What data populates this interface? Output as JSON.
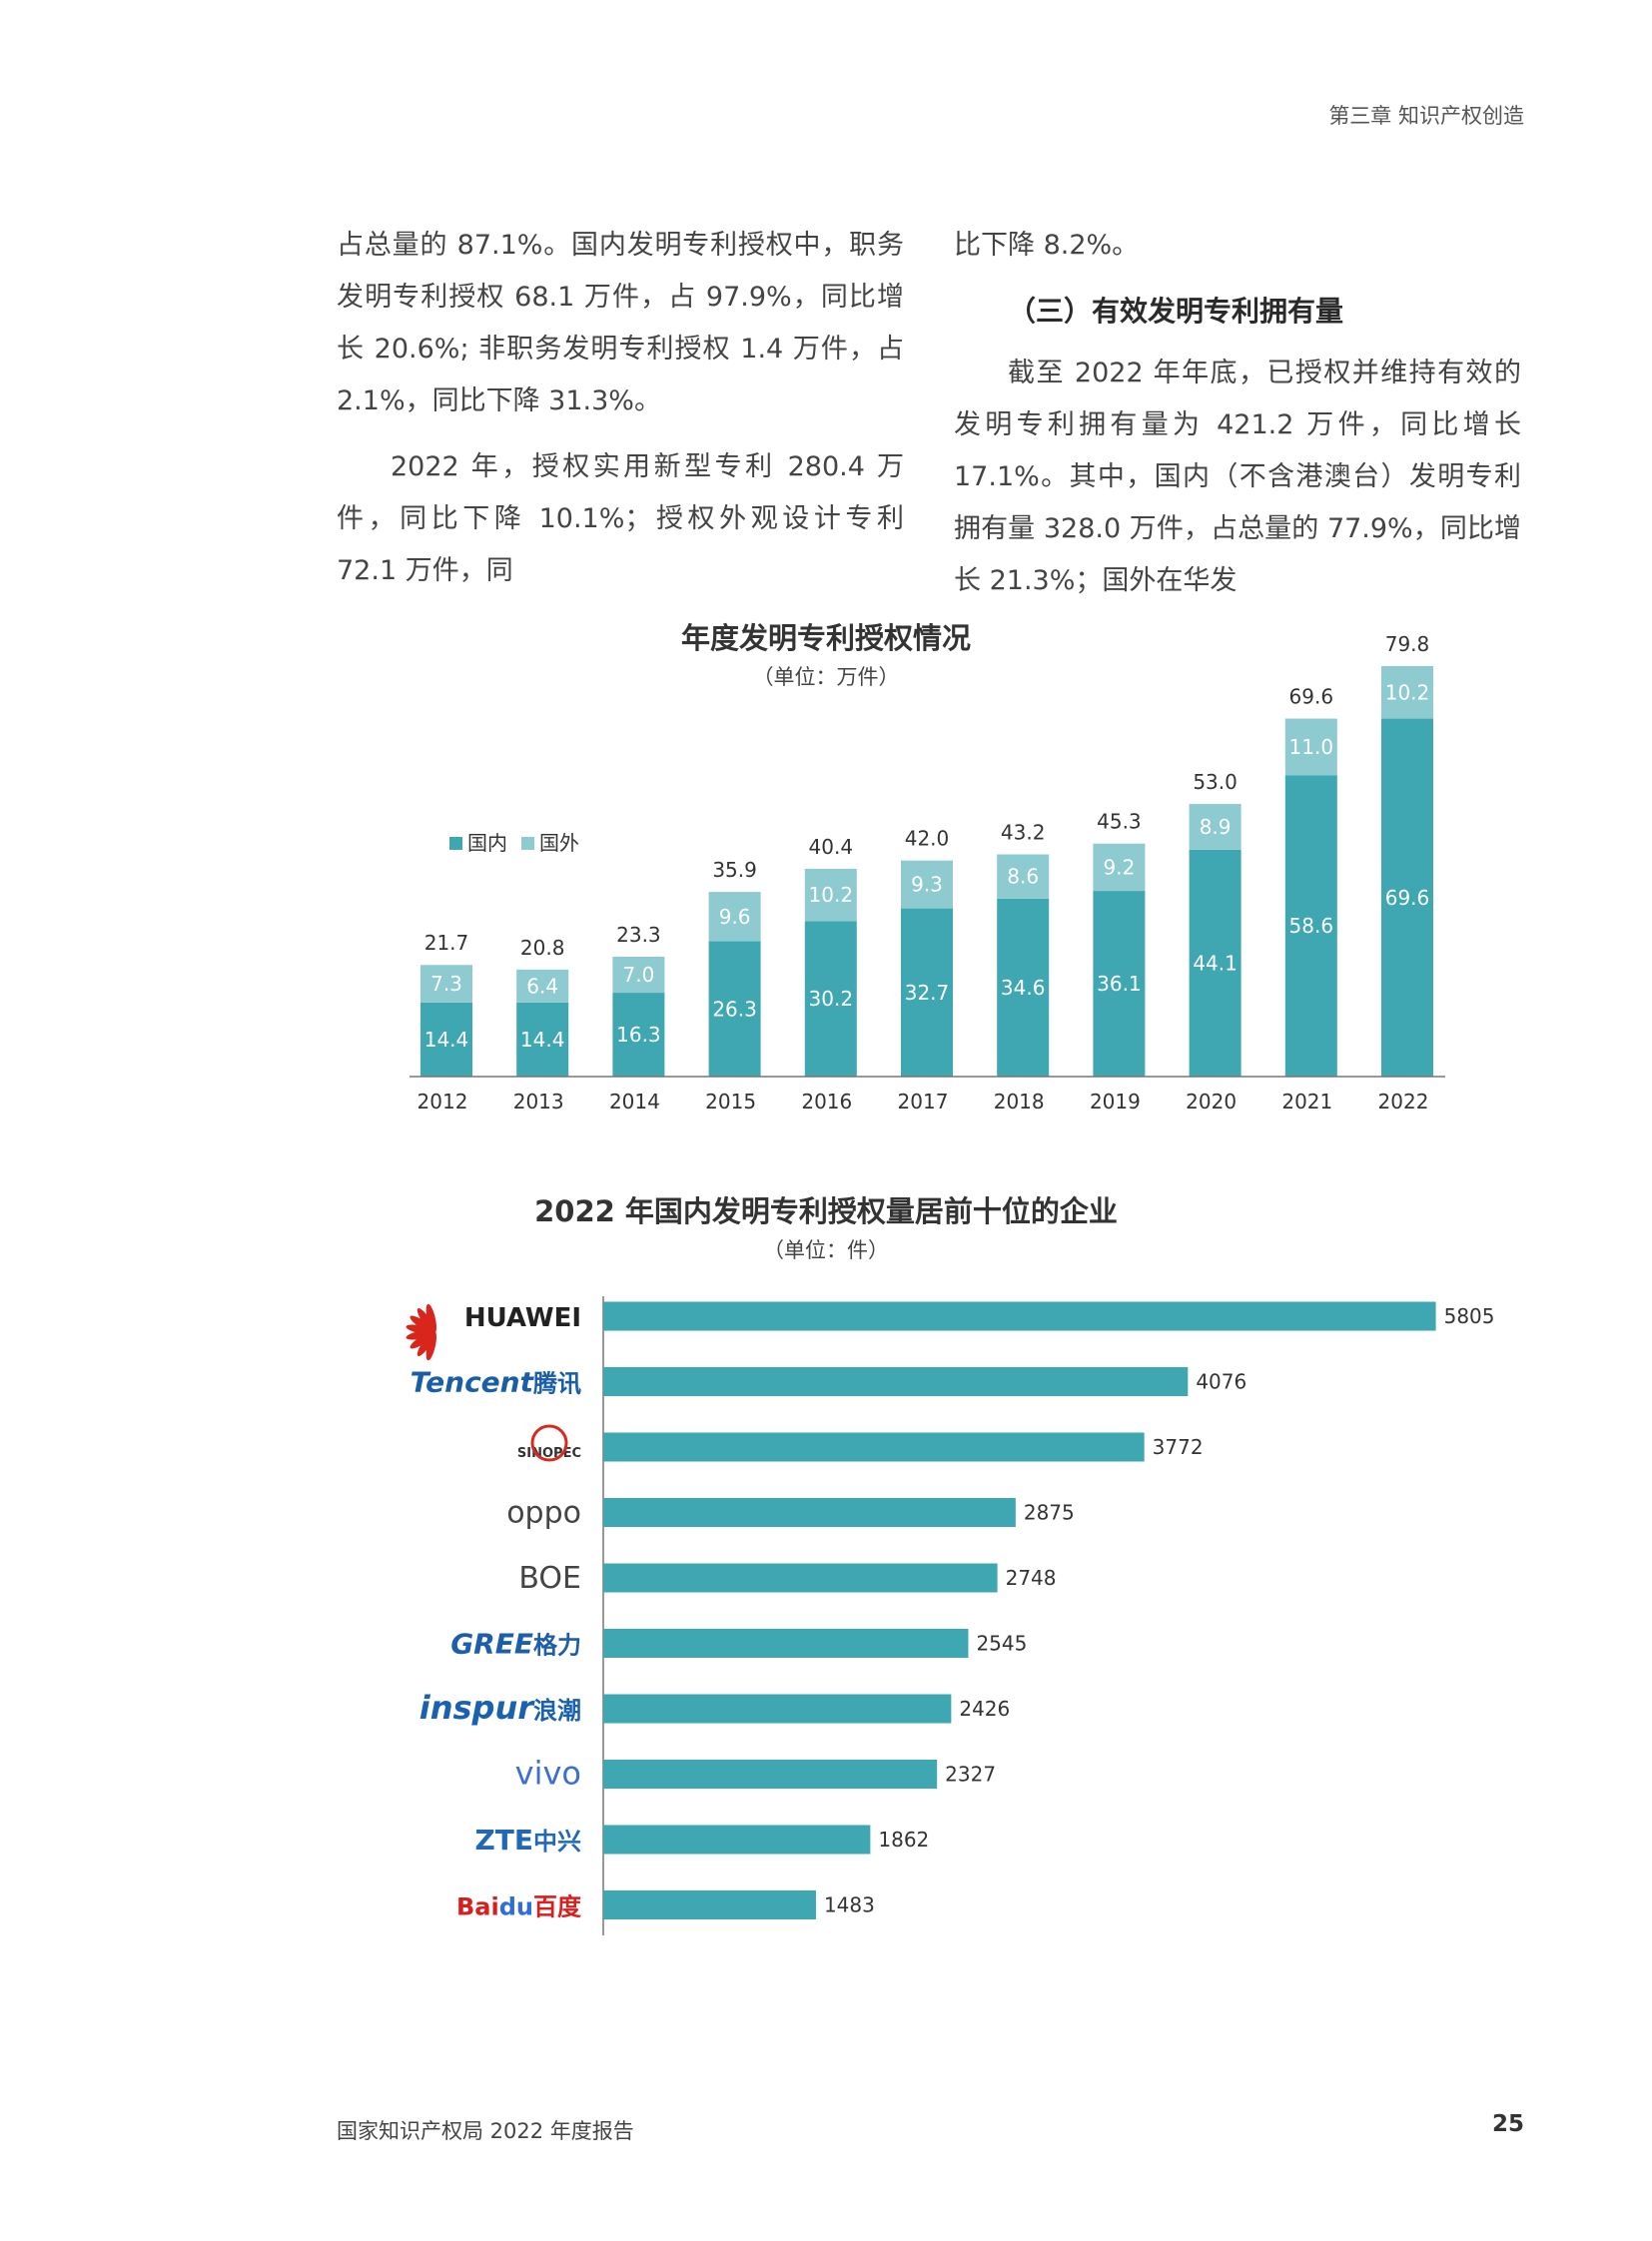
{
  "header": {
    "chapter": "第三章  知识产权创造"
  },
  "text": {
    "left_p1": "占总量的 87.1%。国内发明专利授权中，职务发明专利授权 68.1 万件，占 97.9%，同比增长 20.6%; 非职务发明专利授权 1.4 万件，占 2.1%，同比下降 31.3%。",
    "left_p2": "2022 年，授权实用新型专利 280.4 万件，同比下降 10.1%；授权外观设计专利 72.1 万件，同",
    "right_p1": "比下降 8.2%。",
    "right_heading": "（三）有效发明专利拥有量",
    "right_p2": "截至 2022 年年底，已授权并维持有效的发明专利拥有量为 421.2 万件，同比增长 17.1%。其中，国内（不含港澳台）发明专利拥有量 328.0 万件，占总量的 77.9%，同比增长 21.3%；国外在华发"
  },
  "chart1": {
    "title": "年度发明专利授权情况",
    "unit": "（单位：万件）",
    "chart_data": {
      "type": "bar",
      "stacked": true,
      "categories": [
        "2012",
        "2013",
        "2014",
        "2015",
        "2016",
        "2017",
        "2018",
        "2019",
        "2020",
        "2021",
        "2022"
      ],
      "series": [
        {
          "name": "国内",
          "values": [
            14.4,
            14.4,
            16.3,
            26.3,
            30.2,
            32.7,
            34.6,
            36.1,
            44.1,
            58.6,
            69.6
          ],
          "color": "#3fa7b2"
        },
        {
          "name": "国外",
          "values": [
            7.3,
            6.4,
            7.0,
            9.6,
            10.2,
            9.3,
            8.6,
            9.2,
            8.9,
            11.0,
            10.2
          ],
          "color": "#8ecbd1"
        }
      ],
      "totals": [
        "21.7",
        "20.8",
        "23.3",
        "35.9",
        "40.4",
        "42.0",
        "43.2",
        "45.3",
        "53.0",
        "69.6",
        "79.8"
      ],
      "legend_position": "left",
      "grid": false
    }
  },
  "chart2": {
    "title": "2022 年国内发明专利授权量居前十位的企业",
    "unit": "（单位：件）",
    "chart_data": {
      "type": "bar",
      "orientation": "horizontal",
      "categories": [
        "HUAWEI",
        "Tencent腾讯",
        "SINOPEC",
        "oppo",
        "BOE",
        "GREE格力",
        "inspur浪潮",
        "vivo",
        "ZTE中兴",
        "Baidu百度"
      ],
      "values": [
        5805,
        4076,
        3772,
        2875,
        2748,
        2545,
        2426,
        2327,
        1862,
        1483
      ],
      "color": "#3fa7b2",
      "grid": false
    }
  },
  "footer": {
    "report": "国家知识产权局 2022 年度报告",
    "page": "25"
  }
}
